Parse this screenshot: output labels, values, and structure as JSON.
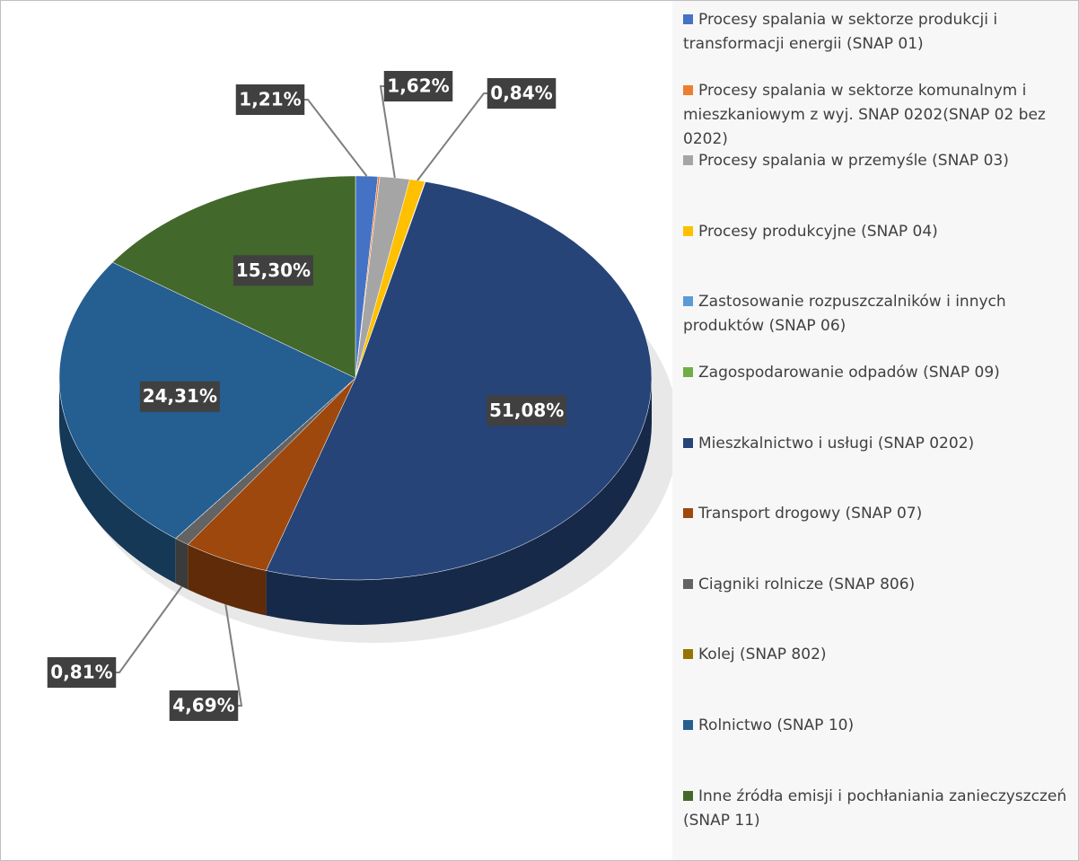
{
  "chart_data": {
    "type": "pie",
    "categories": [
      "Procesy spalania w sektorze produkcji i transformacji energii (SNAP 01)",
      "Procesy spalania w sektorze komunalnym i mieszkaniowym z wyj. SNAP 0202(SNAP 02 bez 0202)",
      "Procesy spalania w przemyśle (SNAP 03)",
      "Procesy produkcyjne (SNAP 04)",
      "Zastosowanie rozpuszczalników i innych produktów (SNAP 06)",
      "Zagospodarowanie odpadów (SNAP 09)",
      "Mieszkalnictwo i usługi (SNAP 0202)",
      "Transport drogowy (SNAP 07)",
      "Ciągniki rolnicze (SNAP 806)",
      "Kolej (SNAP 802)",
      "Rolnictwo (SNAP 10)",
      "Inne źródła emisji i pochłaniania zanieczyszczeń (SNAP 11)"
    ],
    "values": [
      1.21,
      0.1,
      1.62,
      0.84,
      0.02,
      0.01,
      51.08,
      4.69,
      0.81,
      0.01,
      24.31,
      15.3
    ],
    "value_labels": [
      "1,21%",
      null,
      "1,62%",
      "0,84%",
      null,
      null,
      "51,08%",
      "4,69%",
      "0,81%",
      null,
      "24,31%",
      "15,30%"
    ],
    "colors": [
      "#4472c4",
      "#ed7d31",
      "#a5a5a5",
      "#ffc000",
      "#5b9bd5",
      "#70ad47",
      "#264478",
      "#9e480e",
      "#636363",
      "#997300",
      "#255e91",
      "#43682b"
    ],
    "legend": "right"
  }
}
